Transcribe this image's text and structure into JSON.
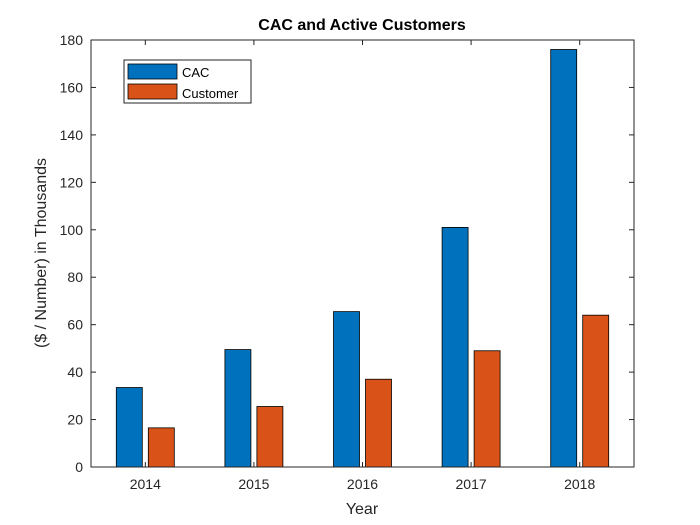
{
  "chart_data": {
    "type": "bar",
    "title": "CAC and Active Customers",
    "xlabel": "Year",
    "ylabel": "($ / Number) in Thousands",
    "categories": [
      "2014",
      "2015",
      "2016",
      "2017",
      "2018"
    ],
    "series": [
      {
        "name": "CAC",
        "color": "#0072BD",
        "values": [
          33.5,
          49.5,
          65.5,
          101,
          176
        ]
      },
      {
        "name": "Customer",
        "color": "#D95319",
        "values": [
          16.5,
          25.5,
          37,
          49,
          64
        ]
      }
    ],
    "ylim": [
      0,
      180
    ],
    "yticks": [
      0,
      20,
      40,
      60,
      80,
      100,
      120,
      140,
      160,
      180
    ],
    "grid": false,
    "legend_location": "top-left"
  }
}
